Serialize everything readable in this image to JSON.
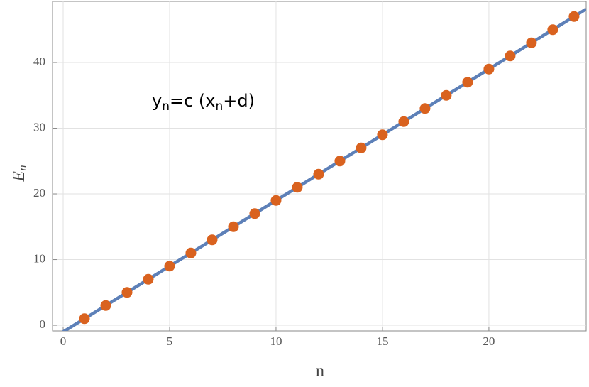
{
  "chart_data": {
    "type": "scatter",
    "xlabel": "n",
    "ylabel": {
      "main": "E",
      "sub": "n"
    },
    "annotation": [
      {
        "text": "y"
      },
      {
        "sub": "n"
      },
      {
        "text": "=c (x"
      },
      {
        "sub": "n"
      },
      {
        "text": "+d)"
      }
    ],
    "x": [
      1,
      2,
      3,
      4,
      5,
      6,
      7,
      8,
      9,
      10,
      11,
      12,
      13,
      14,
      15,
      16,
      17,
      18,
      19,
      20,
      21,
      22,
      23,
      24
    ],
    "series": [
      {
        "color": "#d9621f",
        "values": [
          1,
          3,
          5,
          7,
          9,
          11,
          13,
          15,
          17,
          19,
          21,
          23,
          25,
          27,
          29,
          31,
          33,
          35,
          37,
          39,
          41,
          43,
          45,
          47
        ]
      },
      {
        "type": "line",
        "color": "#5d80b8",
        "x": [
          0,
          24.57
        ],
        "values": [
          -1,
          48.14
        ]
      }
    ],
    "xlim": [
      -0.5,
      24.57
    ],
    "ylim": [
      -0.86,
      49.3
    ],
    "xticks": [
      0,
      5,
      10,
      15,
      20
    ],
    "yticks": [
      0,
      10,
      20,
      30,
      40
    ],
    "grid": true
  }
}
